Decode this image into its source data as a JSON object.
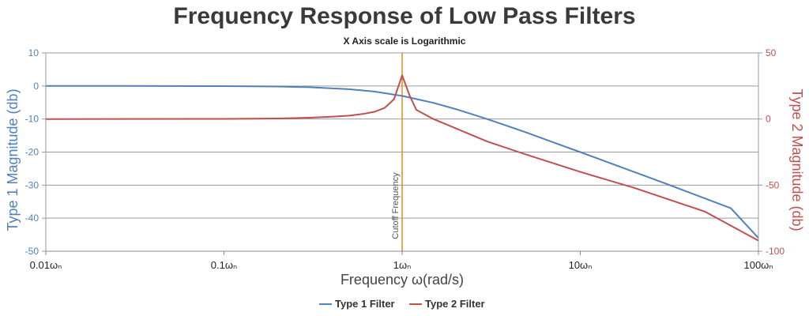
{
  "chart_data": {
    "type": "line",
    "title": "Frequency Response of Low Pass Filters",
    "subtitle": "X Axis scale is Logarithmic",
    "xlabel": "Frequency ω(rad/s)",
    "x_scale": "log",
    "xlim": [
      0.01,
      100
    ],
    "x_tick_values": [
      0.01,
      0.1,
      1,
      10,
      100
    ],
    "x_tick_labels": [
      "0.01ωₙ",
      "0.1ωₙ",
      "1ωₙ",
      "10ωₙ",
      "100ωₙ"
    ],
    "y_left": {
      "label": "Type 1 Magnitude (db)",
      "lim": [
        -50,
        10
      ],
      "ticks": [
        10,
        0,
        -10,
        -20,
        -30,
        -40,
        -50
      ],
      "color": "#4f81bc"
    },
    "y_right": {
      "label": "Type 2 Magnitude (db)",
      "lim": [
        -100,
        50
      ],
      "ticks": [
        50,
        0,
        -50,
        -100
      ],
      "color": "#c0504e"
    },
    "grid": true,
    "strip_line": {
      "x": 1,
      "label": "Cutoff Frequency",
      "color": "#e38a1c"
    },
    "legend_position": "bottom-center",
    "series": [
      {
        "name": "Type 1 Filter",
        "axis": "left",
        "color": "#4f81bc",
        "x": [
          0.01,
          0.03,
          0.1,
          0.2,
          0.3,
          0.5,
          0.7,
          1,
          1.5,
          2,
          3,
          5,
          7,
          10,
          20,
          30,
          50,
          70,
          100
        ],
        "y": [
          0,
          0,
          -0.04,
          -0.17,
          -0.37,
          -0.97,
          -1.7,
          -3,
          -5.1,
          -7,
          -10,
          -14.1,
          -17,
          -20,
          -26,
          -29.5,
          -34,
          -37,
          -46
        ]
      },
      {
        "name": "Type 2 Filter",
        "axis": "right",
        "color": "#c0504e",
        "x": [
          0.01,
          0.1,
          0.2,
          0.3,
          0.4,
          0.5,
          0.6,
          0.7,
          0.8,
          0.9,
          1,
          1.1,
          1.2,
          1.5,
          2,
          3,
          5,
          10,
          20,
          50,
          100
        ],
        "y": [
          0,
          0.1,
          0.4,
          1,
          1.8,
          2.5,
          3.8,
          5.5,
          8.5,
          15,
          33,
          18,
          7,
          0,
          -7,
          -17,
          -27,
          -40,
          -52,
          -70,
          -92
        ]
      }
    ]
  }
}
